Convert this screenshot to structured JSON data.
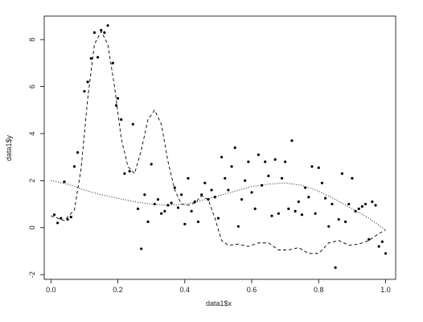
{
  "chart_data": {
    "type": "scatter",
    "title": "",
    "xlabel": "data1$x",
    "ylabel": "data1$y",
    "xlim": [
      -0.02,
      1.03
    ],
    "ylim": [
      -2.2,
      9.0
    ],
    "x_ticks": [
      0.0,
      0.2,
      0.4,
      0.6,
      0.8,
      1.0
    ],
    "x_tick_labels": [
      "0.0",
      "0.2",
      "0.4",
      "0.6",
      "0.8",
      "1.0"
    ],
    "y_ticks": [
      -2,
      0,
      2,
      4,
      6,
      8
    ],
    "y_tick_labels": [
      "-2",
      "0",
      "2",
      "4",
      "6",
      "8"
    ],
    "grid": false,
    "legend": "none",
    "series": [
      {
        "kind": "points",
        "color": "#000000",
        "points": [
          [
            0.01,
            0.55
          ],
          [
            0.02,
            0.2
          ],
          [
            0.03,
            0.4
          ],
          [
            0.04,
            1.95
          ],
          [
            0.05,
            0.35
          ],
          [
            0.06,
            0.45
          ],
          [
            0.07,
            2.6
          ],
          [
            0.08,
            3.2
          ],
          [
            0.1,
            5.8
          ],
          [
            0.11,
            6.2
          ],
          [
            0.12,
            7.2
          ],
          [
            0.13,
            8.3
          ],
          [
            0.14,
            7.25
          ],
          [
            0.15,
            8.4
          ],
          [
            0.16,
            8.3
          ],
          [
            0.17,
            8.6
          ],
          [
            0.185,
            7.0
          ],
          [
            0.195,
            5.2
          ],
          [
            0.2,
            5.5
          ],
          [
            0.21,
            4.6
          ],
          [
            0.22,
            2.3
          ],
          [
            0.235,
            2.4
          ],
          [
            0.245,
            4.4
          ],
          [
            0.26,
            0.8
          ],
          [
            0.27,
            -0.9
          ],
          [
            0.28,
            1.4
          ],
          [
            0.29,
            0.25
          ],
          [
            0.3,
            2.7
          ],
          [
            0.31,
            1.0
          ],
          [
            0.32,
            1.2
          ],
          [
            0.33,
            0.6
          ],
          [
            0.34,
            0.7
          ],
          [
            0.35,
            0.95
          ],
          [
            0.36,
            1.05
          ],
          [
            0.37,
            1.7
          ],
          [
            0.38,
            0.85
          ],
          [
            0.39,
            1.4
          ],
          [
            0.4,
            0.15
          ],
          [
            0.41,
            2.1
          ],
          [
            0.42,
            0.7
          ],
          [
            0.43,
            1.1
          ],
          [
            0.44,
            0.25
          ],
          [
            0.45,
            1.4
          ],
          [
            0.46,
            1.9
          ],
          [
            0.47,
            1.2
          ],
          [
            0.48,
            1.6
          ],
          [
            0.49,
            1.3
          ],
          [
            0.5,
            0.4
          ],
          [
            0.51,
            3.0
          ],
          [
            0.52,
            2.1
          ],
          [
            0.53,
            1.6
          ],
          [
            0.54,
            2.6
          ],
          [
            0.55,
            3.4
          ],
          [
            0.56,
            0.05
          ],
          [
            0.57,
            1.2
          ],
          [
            0.58,
            2.0
          ],
          [
            0.59,
            2.8
          ],
          [
            0.6,
            1.5
          ],
          [
            0.61,
            0.8
          ],
          [
            0.62,
            3.1
          ],
          [
            0.63,
            1.8
          ],
          [
            0.64,
            2.8
          ],
          [
            0.65,
            2.2
          ],
          [
            0.66,
            0.5
          ],
          [
            0.67,
            2.9
          ],
          [
            0.68,
            0.6
          ],
          [
            0.69,
            2.1
          ],
          [
            0.7,
            2.8
          ],
          [
            0.71,
            0.8
          ],
          [
            0.72,
            3.7
          ],
          [
            0.73,
            0.7
          ],
          [
            0.74,
            1.1
          ],
          [
            0.75,
            0.55
          ],
          [
            0.76,
            1.7
          ],
          [
            0.77,
            1.3
          ],
          [
            0.78,
            2.6
          ],
          [
            0.79,
            0.6
          ],
          [
            0.8,
            2.55
          ],
          [
            0.81,
            1.9
          ],
          [
            0.82,
            1.25
          ],
          [
            0.83,
            0.05
          ],
          [
            0.84,
            1.0
          ],
          [
            0.85,
            -1.7
          ],
          [
            0.86,
            0.35
          ],
          [
            0.87,
            2.3
          ],
          [
            0.88,
            0.25
          ],
          [
            0.89,
            1.0
          ],
          [
            0.9,
            2.1
          ],
          [
            0.91,
            0.7
          ],
          [
            0.92,
            0.8
          ],
          [
            0.93,
            0.9
          ],
          [
            0.94,
            1.0
          ],
          [
            0.95,
            -0.5
          ],
          [
            0.96,
            1.1
          ],
          [
            0.97,
            0.95
          ],
          [
            0.98,
            -0.8
          ],
          [
            0.99,
            -0.6
          ],
          [
            1.0,
            -1.1
          ]
        ]
      },
      {
        "kind": "line",
        "style": "dashed",
        "color": "#000000",
        "points": [
          [
            0.0,
            0.5
          ],
          [
            0.04,
            0.3
          ],
          [
            0.07,
            0.75
          ],
          [
            0.09,
            2.5
          ],
          [
            0.11,
            5.5
          ],
          [
            0.13,
            7.8
          ],
          [
            0.15,
            8.35
          ],
          [
            0.17,
            7.8
          ],
          [
            0.19,
            6.0
          ],
          [
            0.21,
            3.8
          ],
          [
            0.23,
            2.6
          ],
          [
            0.25,
            2.3
          ],
          [
            0.27,
            3.3
          ],
          [
            0.29,
            4.6
          ],
          [
            0.31,
            5.0
          ],
          [
            0.33,
            4.4
          ],
          [
            0.35,
            2.8
          ],
          [
            0.37,
            1.6
          ],
          [
            0.39,
            1.0
          ],
          [
            0.41,
            0.95
          ],
          [
            0.43,
            1.05
          ],
          [
            0.45,
            1.35
          ],
          [
            0.47,
            1.2
          ],
          [
            0.49,
            0.4
          ],
          [
            0.51,
            -0.55
          ],
          [
            0.53,
            -0.75
          ],
          [
            0.56,
            -0.7
          ],
          [
            0.59,
            -0.8
          ],
          [
            0.62,
            -0.65
          ],
          [
            0.65,
            -0.65
          ],
          [
            0.68,
            -0.95
          ],
          [
            0.71,
            -0.95
          ],
          [
            0.74,
            -0.85
          ],
          [
            0.77,
            -1.1
          ],
          [
            0.8,
            -1.1
          ],
          [
            0.83,
            -0.65
          ],
          [
            0.86,
            -0.55
          ],
          [
            0.89,
            -0.75
          ],
          [
            0.92,
            -0.7
          ],
          [
            0.95,
            -0.55
          ],
          [
            0.98,
            -0.25
          ],
          [
            1.0,
            -0.1
          ]
        ]
      },
      {
        "kind": "line",
        "style": "dotted",
        "color": "#000000",
        "points": [
          [
            0.0,
            2.0
          ],
          [
            0.05,
            1.85
          ],
          [
            0.1,
            1.6
          ],
          [
            0.15,
            1.4
          ],
          [
            0.2,
            1.25
          ],
          [
            0.25,
            1.1
          ],
          [
            0.3,
            1.0
          ],
          [
            0.35,
            0.95
          ],
          [
            0.4,
            1.0
          ],
          [
            0.45,
            1.15
          ],
          [
            0.5,
            1.35
          ],
          [
            0.55,
            1.55
          ],
          [
            0.6,
            1.75
          ],
          [
            0.65,
            1.85
          ],
          [
            0.7,
            1.9
          ],
          [
            0.75,
            1.8
          ],
          [
            0.8,
            1.55
          ],
          [
            0.85,
            1.2
          ],
          [
            0.9,
            0.8
          ],
          [
            0.95,
            0.4
          ],
          [
            1.0,
            -0.1
          ]
        ]
      }
    ]
  }
}
